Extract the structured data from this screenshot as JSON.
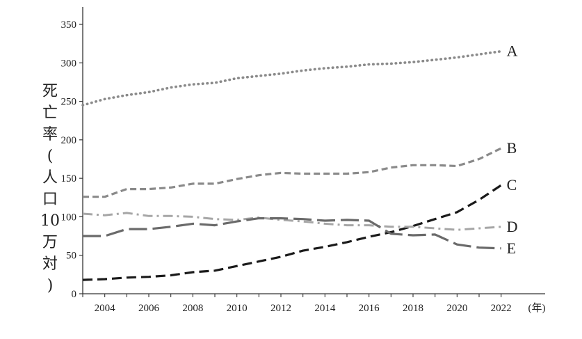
{
  "chart_data": {
    "type": "line",
    "ylabel": "死亡率(人口10万対)",
    "ylabel_lines": [
      "死",
      "亡",
      "率",
      "(",
      "人",
      "口",
      "10",
      "万",
      "対",
      ")"
    ],
    "x_unit": "(年)",
    "x": [
      2003,
      2004,
      2005,
      2006,
      2007,
      2008,
      2009,
      2010,
      2011,
      2012,
      2013,
      2014,
      2015,
      2016,
      2017,
      2018,
      2019,
      2020,
      2021,
      2022
    ],
    "xticks": [
      2004,
      2006,
      2008,
      2010,
      2012,
      2014,
      2016,
      2018,
      2020,
      2022
    ],
    "yticks": [
      0,
      50,
      100,
      150,
      200,
      250,
      300,
      350
    ],
    "xlim": [
      2003,
      2024
    ],
    "ylim": [
      0,
      370
    ],
    "grid": false,
    "series": [
      {
        "name": "A",
        "color": "#8a8a8a",
        "dash": "dotted",
        "values": [
          245,
          253,
          258,
          262,
          268,
          272,
          274,
          280,
          283,
          286,
          290,
          293,
          295,
          298,
          299,
          301,
          304,
          307,
          311,
          315
        ]
      },
      {
        "name": "B",
        "color": "#8a8a8a",
        "dash": "short-dash",
        "values": [
          126,
          126,
          136,
          136,
          138,
          143,
          143,
          149,
          154,
          157,
          156,
          156,
          156,
          158,
          164,
          167,
          167,
          166,
          175,
          189
        ]
      },
      {
        "name": "C",
        "color": "#1a1a1a",
        "dash": "dash",
        "values": [
          18,
          19,
          21,
          22,
          24,
          28,
          30,
          36,
          42,
          48,
          56,
          61,
          67,
          74,
          80,
          88,
          97,
          106,
          122,
          141
        ]
      },
      {
        "name": "D",
        "color": "#a6a6a6",
        "dash": "dash-dot",
        "values": [
          104,
          102,
          105,
          101,
          101,
          100,
          97,
          96,
          99,
          96,
          94,
          91,
          89,
          89,
          87,
          87,
          85,
          83,
          85,
          87
        ]
      },
      {
        "name": "E",
        "color": "#6a6a6a",
        "dash": "long-dash",
        "values": [
          75,
          75,
          84,
          84,
          87,
          91,
          89,
          94,
          98,
          98,
          97,
          95,
          96,
          95,
          78,
          76,
          77,
          64,
          60,
          59
        ]
      }
    ]
  }
}
